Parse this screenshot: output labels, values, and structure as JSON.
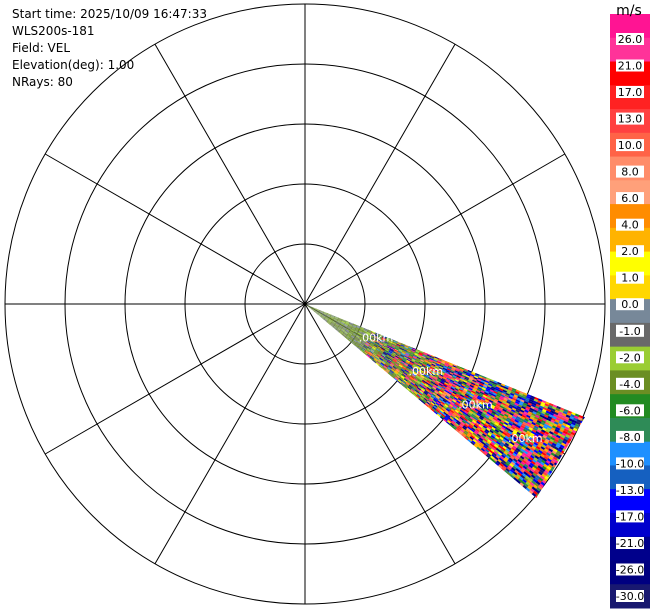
{
  "header": {
    "lines": [
      "Start time: 2025/10/09 16:47:33",
      "WLS200s-181",
      "Field: VEL",
      "Elevation(deg): 1.00",
      "NRays: 80"
    ]
  },
  "chart_data": {
    "type": "heatmap",
    "projection": "polar-ppi",
    "field": "VEL",
    "unit": "m/s",
    "sector_azimuth_deg": [
      112,
      130
    ],
    "rays": 80,
    "range_rings": 5,
    "spokes_deg": [
      0,
      30,
      60,
      90,
      120,
      150,
      180,
      210,
      240,
      270,
      300,
      330
    ],
    "range_labels": [
      ".00km",
      ".00km",
      ".00km",
      ".00km"
    ],
    "grid": true,
    "colorbar": {
      "title": "m/s",
      "position": "right",
      "labels": [
        "26.0",
        "21.0",
        "17.0",
        "13.0",
        "10.0",
        "8.0",
        "6.0",
        "4.0",
        "2.0",
        "1.0",
        "0.0",
        "-1.0",
        "-2.0",
        "-4.0",
        "-6.0",
        "-8.0",
        "-10.0",
        "-13.0",
        "-17.0",
        "-21.0",
        "-26.0",
        "-30.0"
      ],
      "colors": [
        "#ff1493",
        "#ff3399",
        "#ff0000",
        "#ff2222",
        "#ff4040",
        "#ff6347",
        "#ff8c69",
        "#ffa07a",
        "#ff8c00",
        "#ffb300",
        "#ffff00",
        "#ffd700",
        "#778899",
        "#696969",
        "#9acd32",
        "#6b8e23",
        "#228b22",
        "#2e8b57",
        "#1e90ff",
        "#1560c0",
        "#0000ff",
        "#0000cd",
        "#00008b",
        "#000080",
        "#191970"
      ]
    }
  }
}
